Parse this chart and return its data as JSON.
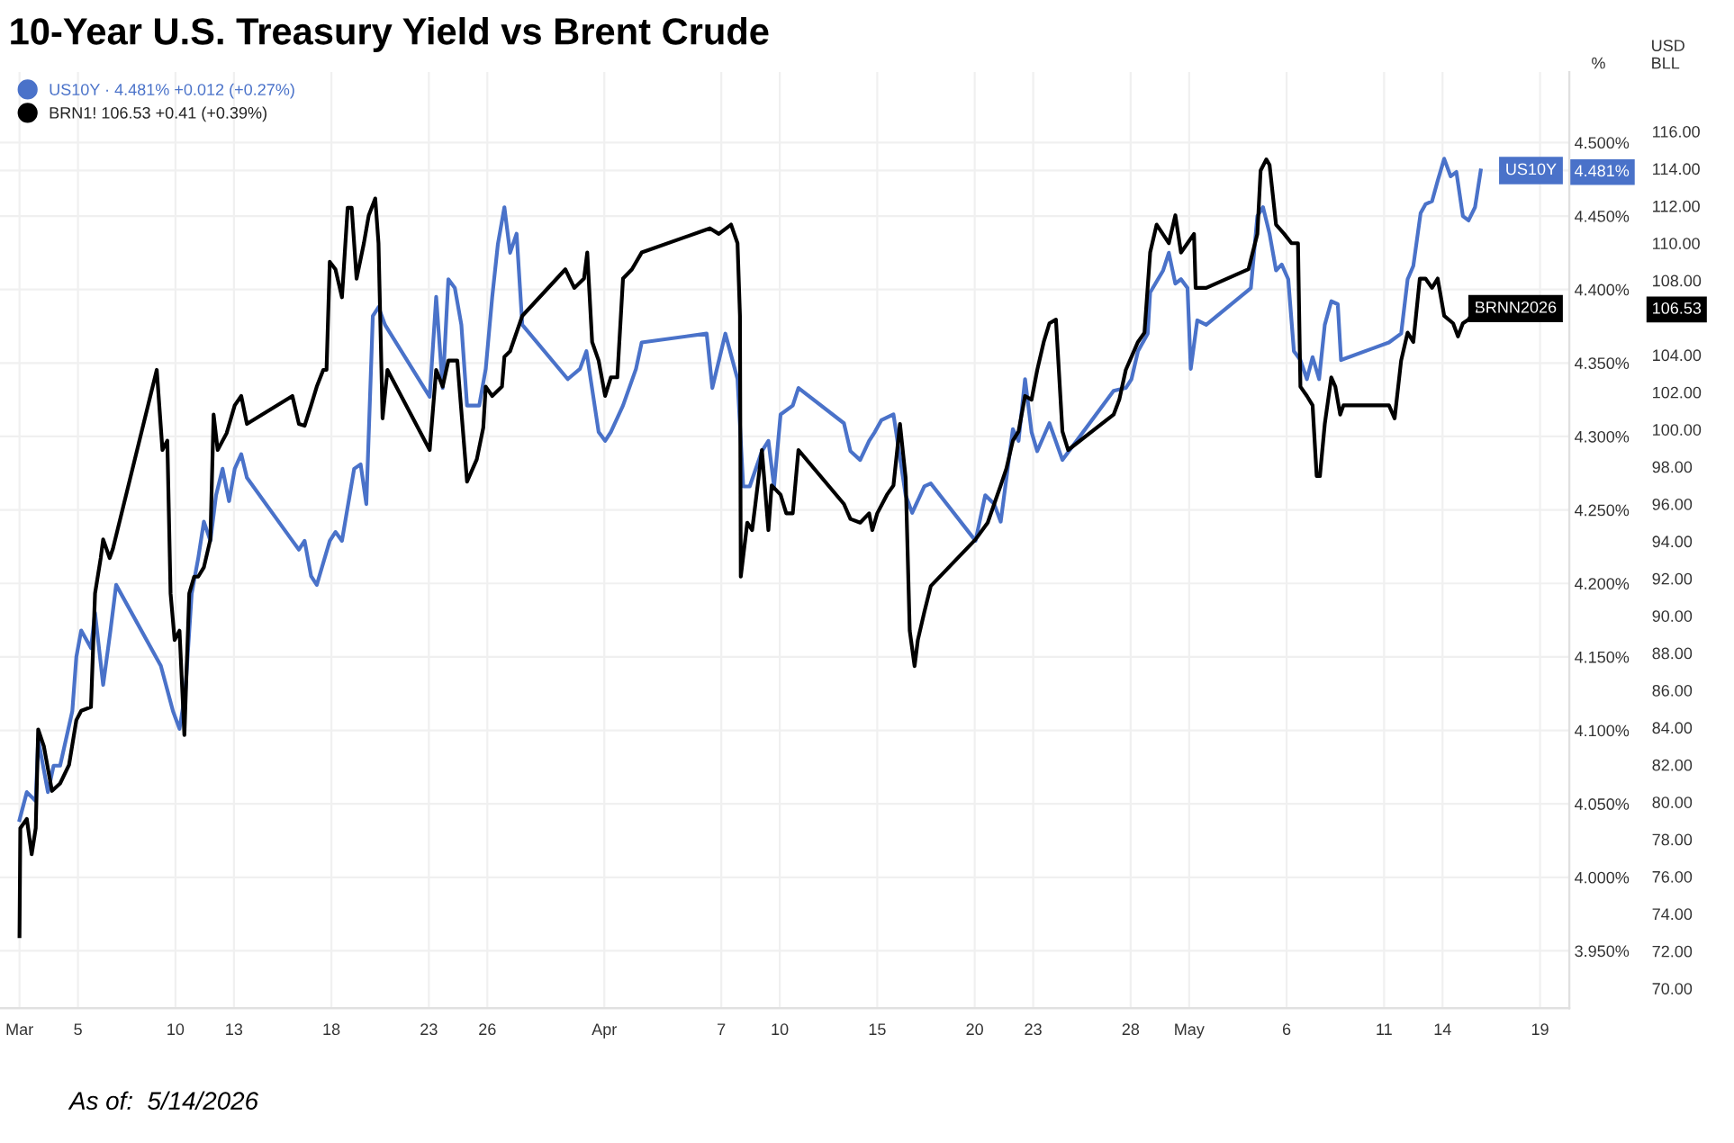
{
  "chart_data": {
    "type": "line",
    "title": "10-Year U.S. Treasury Yield vs Brent Crude",
    "ylabel": "%",
    "y2label": "USD\nBLL",
    "xlim": [
      "2026-03-01T00:00",
      "2026-05-20T12:00"
    ],
    "xticks": [
      {
        "value": "2026-03-02",
        "label": "Mar"
      },
      {
        "value": "2026-03-05",
        "label": "5"
      },
      {
        "value": "2026-03-10",
        "label": "10"
      },
      {
        "value": "2026-03-13",
        "label": "13"
      },
      {
        "value": "2026-03-18",
        "label": "18"
      },
      {
        "value": "2026-03-23",
        "label": "23"
      },
      {
        "value": "2026-03-26",
        "label": "26"
      },
      {
        "value": "2026-04-01",
        "label": "Apr"
      },
      {
        "value": "2026-04-07",
        "label": "7"
      },
      {
        "value": "2026-04-10",
        "label": "10"
      },
      {
        "value": "2026-04-15",
        "label": "15"
      },
      {
        "value": "2026-04-20",
        "label": "20"
      },
      {
        "value": "2026-04-23",
        "label": "23"
      },
      {
        "value": "2026-04-28",
        "label": "28"
      },
      {
        "value": "2026-05-01",
        "label": "May"
      },
      {
        "value": "2026-05-06",
        "label": "6"
      },
      {
        "value": "2026-05-11",
        "label": "11"
      },
      {
        "value": "2026-05-14",
        "label": "14"
      },
      {
        "value": "2026-05-19",
        "label": "19"
      }
    ],
    "ylim": [
      3.911,
      4.548
    ],
    "yticks": [
      {
        "value": 3.95,
        "label": "3.950%"
      },
      {
        "value": 4.0,
        "label": "4.000%"
      },
      {
        "value": 4.05,
        "label": "4.050%"
      },
      {
        "value": 4.1,
        "label": "4.100%"
      },
      {
        "value": 4.15,
        "label": "4.150%"
      },
      {
        "value": 4.2,
        "label": "4.200%"
      },
      {
        "value": 4.25,
        "label": "4.250%"
      },
      {
        "value": 4.3,
        "label": "4.300%"
      },
      {
        "value": 4.35,
        "label": "4.350%"
      },
      {
        "value": 4.4,
        "label": "4.400%"
      },
      {
        "value": 4.45,
        "label": "4.450%"
      },
      {
        "value": 4.5,
        "label": "4.500%"
      },
      {
        "value": 4.481,
        "label": "4.481%"
      }
    ],
    "y2lim": [
      68.94,
      119.19
    ],
    "y2ticks": [
      {
        "value": 70,
        "label": "70.00"
      },
      {
        "value": 72,
        "label": "72.00"
      },
      {
        "value": 74,
        "label": "74.00"
      },
      {
        "value": 76,
        "label": "76.00"
      },
      {
        "value": 78,
        "label": "78.00"
      },
      {
        "value": 80,
        "label": "80.00"
      },
      {
        "value": 82,
        "label": "82.00"
      },
      {
        "value": 84,
        "label": "84.00"
      },
      {
        "value": 86,
        "label": "86.00"
      },
      {
        "value": 88,
        "label": "88.00"
      },
      {
        "value": 90,
        "label": "90.00"
      },
      {
        "value": 92,
        "label": "92.00"
      },
      {
        "value": 94,
        "label": "94.00"
      },
      {
        "value": 96,
        "label": "96.00"
      },
      {
        "value": 98,
        "label": "98.00"
      },
      {
        "value": 100,
        "label": "100.00"
      },
      {
        "value": 102,
        "label": "102.00"
      },
      {
        "value": 104,
        "label": "104.00"
      },
      {
        "value": 108,
        "label": "108.00"
      },
      {
        "value": 110,
        "label": "110.00"
      },
      {
        "value": 112,
        "label": "112.00"
      },
      {
        "value": 114,
        "label": "114.00"
      },
      {
        "value": 116,
        "label": "116.00"
      },
      {
        "value": 106.53,
        "label": "106.53"
      }
    ],
    "grid": true,
    "legend": "top left",
    "line_style": "solid",
    "marker": "none",
    "series": [
      {
        "name": "US10Y · 4.481% +0.012 (+0.27%)",
        "color": "#4a72c9",
        "x": [
          "2026-03-02T00:00",
          "2026-03-02T09:00",
          "2026-03-02T20:00",
          "2026-03-02T23:00",
          "2026-03-03T11:00",
          "2026-03-03T18:00",
          "2026-03-04T02:00",
          "2026-03-04T17:00",
          "2026-03-04T22:00",
          "2026-03-05T04:00",
          "2026-03-05T16:00",
          "2026-03-05T21:00",
          "2026-03-06T07:00",
          "2026-03-06T16:00",
          "2026-03-06T23:00",
          "2026-03-09T06:00",
          "2026-03-09T21:00",
          "2026-03-10T05:00",
          "2026-03-10T12:00",
          "2026-03-10T20:00",
          "2026-03-11T04:00",
          "2026-03-11T11:00",
          "2026-03-11T19:00",
          "2026-03-12T02:00",
          "2026-03-12T10:00",
          "2026-03-12T18:00",
          "2026-03-13T01:00",
          "2026-03-13T09:00",
          "2026-03-13T16:00",
          "2026-03-16T00:00",
          "2026-03-16T08:00",
          "2026-03-16T15:00",
          "2026-03-16T23:00",
          "2026-03-17T06:00",
          "2026-03-17T22:00",
          "2026-03-18T05:00",
          "2026-03-18T13:00",
          "2026-03-19T04:00",
          "2026-03-19T12:00",
          "2026-03-19T19:00",
          "2026-03-20T03:00",
          "2026-03-20T10:00",
          "2026-03-20T18:00",
          "2026-03-23T01:00",
          "2026-03-23T09:00",
          "2026-03-23T17:00",
          "2026-03-24T00:00",
          "2026-03-24T08:00",
          "2026-03-24T16:00",
          "2026-03-24T23:00",
          "2026-03-25T14:00",
          "2026-03-25T22:00",
          "2026-03-26T06:00",
          "2026-03-26T13:00",
          "2026-03-26T21:00",
          "2026-03-27T04:00",
          "2026-03-27T12:00",
          "2026-03-27T19:00",
          "2026-03-30T03:00",
          "2026-03-30T18:00",
          "2026-03-31T02:00",
          "2026-03-31T17:00",
          "2026-04-01T01:00",
          "2026-04-01T08:00",
          "2026-04-01T23:00",
          "2026-04-02T15:00",
          "2026-04-02T22:00",
          "2026-04-06T06:00",
          "2026-04-06T13:00",
          "2026-04-07T05:00",
          "2026-04-07T20:00",
          "2026-04-08T03:00",
          "2026-04-08T11:00",
          "2026-04-09T02:00",
          "2026-04-09T10:00",
          "2026-04-09T17:00",
          "2026-04-10T01:00",
          "2026-04-10T16:00",
          "2026-04-10T23:00",
          "2026-04-13T07:00",
          "2026-04-13T15:00",
          "2026-04-14T03:00",
          "2026-04-14T14:00",
          "2026-04-14T21:00",
          "2026-04-15T05:00",
          "2026-04-15T20:00",
          "2026-04-16T11:00",
          "2026-04-16T19:00",
          "2026-04-17T10:00",
          "2026-04-17T18:00",
          "2026-04-20T01:00",
          "2026-04-20T13:00",
          "2026-04-21T00:00",
          "2026-04-21T08:00",
          "2026-04-21T23:00",
          "2026-04-22T06:00",
          "2026-04-22T14:00",
          "2026-04-22T22:00",
          "2026-04-23T05:00",
          "2026-04-23T20:00",
          "2026-04-24T12:00",
          "2026-04-27T03:00",
          "2026-04-27T18:00",
          "2026-04-28T01:00",
          "2026-04-28T09:00",
          "2026-04-28T21:00",
          "2026-04-29T00:00",
          "2026-04-29T16:00",
          "2026-04-29T23:00",
          "2026-04-30T07:00",
          "2026-04-30T14:00",
          "2026-04-30T22:00",
          "2026-05-01T02:00",
          "2026-05-01T10:00",
          "2026-05-01T21:00",
          "2026-05-04T04:00",
          "2026-05-04T12:00",
          "2026-05-04T19:00",
          "2026-05-05T03:00",
          "2026-05-05T11:00",
          "2026-05-05T18:00",
          "2026-05-06T02:00",
          "2026-05-06T09:00",
          "2026-05-06T17:00",
          "2026-05-07T01:00",
          "2026-05-07T08:00",
          "2026-05-07T16:00",
          "2026-05-07T23:00",
          "2026-05-08T07:00",
          "2026-05-08T15:00",
          "2026-05-08T19:00",
          "2026-05-11T06:00",
          "2026-05-11T21:00",
          "2026-05-12T05:00",
          "2026-05-12T12:00",
          "2026-05-12T21:00",
          "2026-05-13T03:00",
          "2026-05-13T11:00",
          "2026-05-13T18:00",
          "2026-05-14T02:00",
          "2026-05-14T10:00",
          "2026-05-14T17:00",
          "2026-05-15T01:00",
          "2026-05-15T08:00",
          "2026-05-15T16:00",
          "2026-05-15T23:00"
        ],
        "values": [
          4.039,
          4.058,
          4.052,
          4.094,
          4.058,
          4.076,
          4.076,
          4.113,
          4.15,
          4.168,
          4.156,
          4.18,
          4.131,
          4.168,
          4.199,
          4.144,
          4.113,
          4.101,
          4.125,
          4.193,
          4.217,
          4.242,
          4.229,
          4.26,
          4.278,
          4.256,
          4.278,
          4.288,
          4.272,
          4.229,
          4.223,
          4.229,
          4.205,
          4.199,
          4.229,
          4.235,
          4.229,
          4.278,
          4.281,
          4.254,
          4.382,
          4.388,
          4.376,
          4.327,
          4.395,
          4.333,
          4.407,
          4.401,
          4.376,
          4.321,
          4.321,
          4.346,
          4.395,
          4.431,
          4.456,
          4.425,
          4.438,
          4.376,
          4.339,
          4.346,
          4.358,
          4.303,
          4.297,
          4.303,
          4.321,
          4.346,
          4.364,
          4.37,
          4.333,
          4.37,
          4.339,
          4.266,
          4.266,
          4.29,
          4.297,
          4.266,
          4.315,
          4.321,
          4.333,
          4.309,
          4.29,
          4.284,
          4.297,
          4.303,
          4.311,
          4.315,
          4.26,
          4.248,
          4.266,
          4.268,
          4.229,
          4.26,
          4.254,
          4.242,
          4.305,
          4.297,
          4.339,
          4.303,
          4.29,
          4.309,
          4.284,
          4.331,
          4.333,
          4.339,
          4.358,
          4.37,
          4.398,
          4.413,
          4.425,
          4.404,
          4.407,
          4.401,
          4.346,
          4.379,
          4.376,
          4.401,
          4.45,
          4.456,
          4.438,
          4.413,
          4.417,
          4.407,
          4.358,
          4.352,
          4.339,
          4.354,
          4.339,
          4.376,
          4.392,
          4.39,
          4.352,
          4.364,
          4.37,
          4.407,
          4.416,
          4.452,
          4.458,
          4.46,
          4.474,
          4.489,
          4.477,
          4.48,
          4.45,
          4.447,
          4.456,
          4.481
        ]
      },
      {
        "name": "BRN1! 106.53 +0.41 (+0.39%)",
        "color": "#000000",
        "axis": "y2",
        "x": [
          "2026-03-02T00:00",
          "2026-03-02T01:00",
          "2026-03-02T09:00",
          "2026-03-02T15:00",
          "2026-03-02T20:00",
          "2026-03-02T23:00",
          "2026-03-03T06:00",
          "2026-03-03T16:00",
          "2026-03-04T02:00",
          "2026-03-04T13:00",
          "2026-03-04T22:00",
          "2026-03-05T04:00",
          "2026-03-05T16:00",
          "2026-03-05T21:00",
          "2026-03-06T04:00",
          "2026-03-06T07:00",
          "2026-03-06T15:00",
          "2026-03-06T19:00",
          "2026-03-09T01:00",
          "2026-03-09T08:00",
          "2026-03-09T14:00",
          "2026-03-09T18:00",
          "2026-03-09T23:00",
          "2026-03-10T05:00",
          "2026-03-10T11:00",
          "2026-03-10T17:00",
          "2026-03-10T23:00",
          "2026-03-11T04:00",
          "2026-03-11T11:00",
          "2026-03-11T19:00",
          "2026-03-11T23:00",
          "2026-03-12T04:00",
          "2026-03-12T15:00",
          "2026-03-13T01:00",
          "2026-03-13T09:00",
          "2026-03-13T16:00",
          "2026-03-16T00:00",
          "2026-03-16T08:00",
          "2026-03-16T15:00",
          "2026-03-16T23:00",
          "2026-03-17T06:00",
          "2026-03-17T14:00",
          "2026-03-17T18:00",
          "2026-03-17T22:00",
          "2026-03-18T05:00",
          "2026-03-18T13:00",
          "2026-03-18T20:00",
          "2026-03-19T01:00",
          "2026-03-19T07:00",
          "2026-03-19T16:00",
          "2026-03-19T22:00",
          "2026-03-20T06:00",
          "2026-03-20T10:00",
          "2026-03-20T15:00",
          "2026-03-20T21:00",
          "2026-03-23T01:00",
          "2026-03-23T09:00",
          "2026-03-23T17:00",
          "2026-03-24T00:00",
          "2026-03-24T11:00",
          "2026-03-24T23:00",
          "2026-03-25T11:00",
          "2026-03-25T19:00",
          "2026-03-25T22:00",
          "2026-03-26T06:00",
          "2026-03-26T18:00",
          "2026-03-26T21:00",
          "2026-03-27T04:00",
          "2026-03-27T19:00",
          "2026-03-30T00:00",
          "2026-03-30T11:00",
          "2026-03-30T23:00",
          "2026-03-31T03:00",
          "2026-03-31T09:00",
          "2026-03-31T17:00",
          "2026-04-01T01:00",
          "2026-04-01T08:00",
          "2026-04-01T16:00",
          "2026-04-01T23:00",
          "2026-04-02T10:00",
          "2026-04-02T22:00",
          "2026-04-06T10:00",
          "2026-04-06T21:00",
          "2026-04-07T12:00",
          "2026-04-07T20:00",
          "2026-04-07T23:00",
          "2026-04-08T00:00",
          "2026-04-08T08:00",
          "2026-04-08T14:00",
          "2026-04-08T18:00",
          "2026-04-09T02:00",
          "2026-04-09T10:00",
          "2026-04-09T14:00",
          "2026-04-10T01:00",
          "2026-04-10T08:00",
          "2026-04-10T16:00",
          "2026-04-10T23:00",
          "2026-04-13T07:00",
          "2026-04-13T15:00",
          "2026-04-14T03:00",
          "2026-04-14T14:00",
          "2026-04-14T18:00",
          "2026-04-15T00:00",
          "2026-04-15T12:00",
          "2026-04-15T20:00",
          "2026-04-16T04:00",
          "2026-04-16T11:00",
          "2026-04-16T16:00",
          "2026-04-16T22:00",
          "2026-04-17T02:00",
          "2026-04-17T10:00",
          "2026-04-17T18:00",
          "2026-04-20T01:00",
          "2026-04-20T16:00",
          "2026-04-21T00:00",
          "2026-04-21T08:00",
          "2026-04-21T15:00",
          "2026-04-21T23:00",
          "2026-04-22T06:00",
          "2026-04-22T14:00",
          "2026-04-22T22:00",
          "2026-04-23T05:00",
          "2026-04-23T13:00",
          "2026-04-23T20:00",
          "2026-04-24T04:00",
          "2026-04-24T12:00",
          "2026-04-24T19:00",
          "2026-04-27T03:00",
          "2026-04-27T10:00",
          "2026-04-27T18:00",
          "2026-04-28T09:00",
          "2026-04-28T17:00",
          "2026-04-29T00:00",
          "2026-04-29T08:00",
          "2026-04-29T23:00",
          "2026-04-30T07:00",
          "2026-04-30T14:00",
          "2026-04-30T22:00",
          "2026-05-01T06:00",
          "2026-05-01T08:00",
          "2026-05-01T21:00",
          "2026-05-04T01:00",
          "2026-05-04T12:00",
          "2026-05-04T16:00",
          "2026-05-04T23:00",
          "2026-05-05T03:00",
          "2026-05-05T11:00",
          "2026-05-05T21:00",
          "2026-05-06T06:00",
          "2026-05-06T14:00",
          "2026-05-06T17:00",
          "2026-05-07T01:00",
          "2026-05-07T08:00",
          "2026-05-07T13:00",
          "2026-05-07T17:00",
          "2026-05-07T23:00",
          "2026-05-08T07:00",
          "2026-05-08T12:00",
          "2026-05-08T18:00",
          "2026-05-08T22:00",
          "2026-05-11T06:00",
          "2026-05-11T13:00",
          "2026-05-11T21:00",
          "2026-05-12T05:00",
          "2026-05-12T12:00",
          "2026-05-12T20:00",
          "2026-05-13T03:00",
          "2026-05-13T11:00",
          "2026-05-13T18:00",
          "2026-05-14T02:00",
          "2026-05-14T13:00",
          "2026-05-14T19:00",
          "2026-05-15T01:00",
          "2026-05-15T08:00",
          "2026-05-15T16:00"
        ],
        "values": [
          72.8,
          78.6,
          79.1,
          77.2,
          78.6,
          83.9,
          83.0,
          80.6,
          81.0,
          82.0,
          84.4,
          84.9,
          85.1,
          91.2,
          93.1,
          94.1,
          93.1,
          93.6,
          103.2,
          98.9,
          99.4,
          91.2,
          88.7,
          89.2,
          83.6,
          91.2,
          92.1,
          92.1,
          92.6,
          94.1,
          100.8,
          98.9,
          99.8,
          101.3,
          101.8,
          100.3,
          101.8,
          100.3,
          100.2,
          101.3,
          102.3,
          103.2,
          103.2,
          109.0,
          108.6,
          107.1,
          111.9,
          111.9,
          108.1,
          110.0,
          111.5,
          112.4,
          110.0,
          100.6,
          103.2,
          98.9,
          103.2,
          102.3,
          103.7,
          103.7,
          97.2,
          98.4,
          100.1,
          102.3,
          101.8,
          102.3,
          103.9,
          104.2,
          106.1,
          108.6,
          107.6,
          108.1,
          109.5,
          104.7,
          103.7,
          101.8,
          102.8,
          102.8,
          108.1,
          108.6,
          109.5,
          110.8,
          110.5,
          111.0,
          110.0,
          106.1,
          92.1,
          95.0,
          94.6,
          96.0,
          98.9,
          94.6,
          97.0,
          96.5,
          95.5,
          95.5,
          98.9,
          96.0,
          95.2,
          95.0,
          95.5,
          94.6,
          95.5,
          96.5,
          97.0,
          100.3,
          97.4,
          89.2,
          87.3,
          88.7,
          90.2,
          91.6,
          94.1,
          95.0,
          96.0,
          97.0,
          97.9,
          99.4,
          99.9,
          101.8,
          101.6,
          103.2,
          104.7,
          105.7,
          105.9,
          99.9,
          98.9,
          100.8,
          101.6,
          103.2,
          104.7,
          105.2,
          109.5,
          111.0,
          110.0,
          111.5,
          109.5,
          110.0,
          110.5,
          107.6,
          107.6,
          108.6,
          110.5,
          113.9,
          114.5,
          114.2,
          111.0,
          110.5,
          110.0,
          110.0,
          102.3,
          101.8,
          101.3,
          97.5,
          97.5,
          100.3,
          102.8,
          102.3,
          100.8,
          101.3,
          101.3,
          100.6,
          103.7,
          105.2,
          104.7,
          108.1,
          108.1,
          107.6,
          108.1,
          106.1,
          105.7,
          105.0,
          105.7,
          105.9,
          106.5
        ]
      }
    ],
    "annotations": [
      {
        "text": "US10Y",
        "x": "2026-05-15T23:00",
        "y": 4.481
      },
      {
        "text": "BRNN2026",
        "x": "2026-05-15T16:00",
        "y": 4.387
      },
      "As of:  5/14/2026"
    ]
  }
}
